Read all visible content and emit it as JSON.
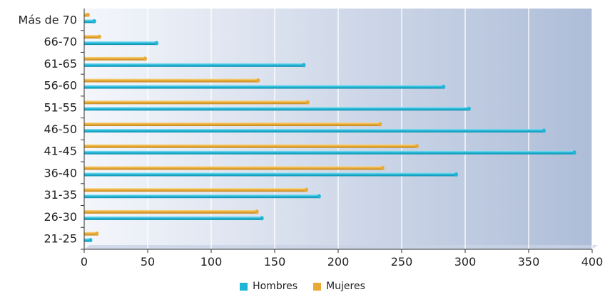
{
  "chart_data": {
    "type": "bar",
    "orientation": "horizontal",
    "title": "",
    "xlabel": "",
    "ylabel": "",
    "categories": [
      "21-25",
      "26-30",
      "31-35",
      "36-40",
      "41-45",
      "46-50",
      "51-55",
      "56-60",
      "61-65",
      "66-70",
      "Más de 70"
    ],
    "series": [
      {
        "name": "Hombres",
        "color": "#1fb5d6",
        "values": [
          5,
          140,
          185,
          293,
          386,
          362,
          303,
          283,
          173,
          57,
          8
        ]
      },
      {
        "name": "Mujeres",
        "color": "#e8a935",
        "values": [
          10,
          136,
          175,
          235,
          262,
          233,
          176,
          137,
          48,
          12,
          3
        ]
      }
    ],
    "xlim": [
      0,
      400
    ],
    "x_ticks": [
      0,
      50,
      100,
      150,
      200,
      250,
      300,
      350,
      400
    ],
    "grid": true,
    "legend_position": "bottom"
  }
}
